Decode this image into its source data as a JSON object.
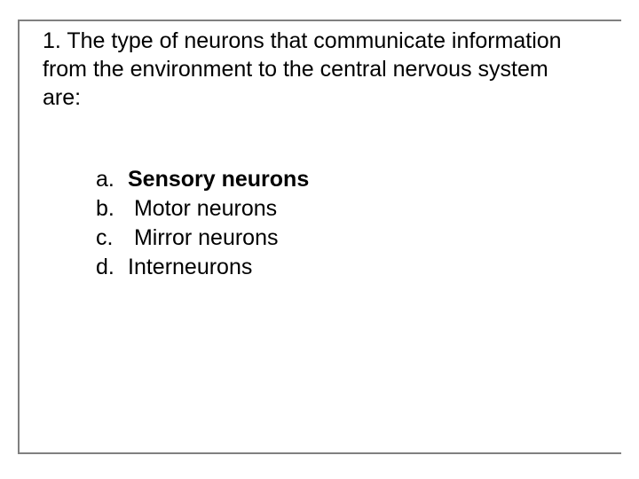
{
  "question": {
    "text": "1. The type of neurons that communicate information from the environment to the central nervous system are:",
    "font_size": 25,
    "color": "#000000"
  },
  "options": [
    {
      "letter": "a.",
      "text": "Sensory neurons",
      "bold": true
    },
    {
      "letter": "b.",
      "text": " Motor neurons",
      "bold": false
    },
    {
      "letter": "c.",
      "text": " Mirror neurons",
      "bold": false
    },
    {
      "letter": "d.",
      "text": "Interneurons",
      "bold": false
    }
  ],
  "frame": {
    "border_color": "#808080",
    "border_width": 2
  },
  "background_color": "#ffffff"
}
